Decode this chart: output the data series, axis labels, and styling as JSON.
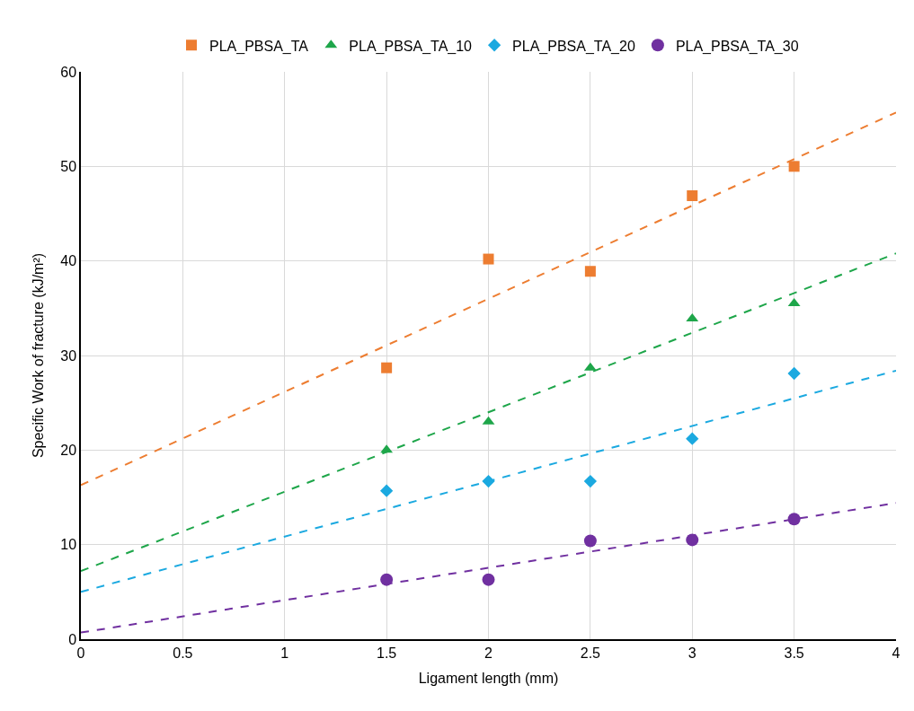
{
  "chart_data": {
    "type": "scatter",
    "xlabel": "Ligament length (mm)",
    "ylabel": "Specific Work of fracture (kJ/m²)",
    "xlim": [
      0,
      4
    ],
    "xticks": [
      0,
      0.5,
      1,
      1.5,
      2,
      2.5,
      3,
      3.5,
      4
    ],
    "ylim": [
      0,
      60
    ],
    "yticks": [
      0,
      10,
      20,
      30,
      40,
      50,
      60
    ],
    "grid": true,
    "legend": "top",
    "series": [
      {
        "name": "PLA_PBSA_TA",
        "color": "#ed7d31",
        "marker": "square",
        "x": [
          1.5,
          2,
          2.5,
          3,
          3.5
        ],
        "values": [
          28.7,
          40.2,
          38.9,
          46.9,
          50.0
        ]
      },
      {
        "name": "PLA_PBSA_TA_10",
        "color": "#1ea64a",
        "marker": "triangle",
        "x": [
          1.5,
          2,
          2.5,
          3,
          3.5
        ],
        "values": [
          20.0,
          23.0,
          28.7,
          33.9,
          35.5
        ]
      },
      {
        "name": "PLA_PBSA_TA_20",
        "color": "#1ba9e0",
        "marker": "diamond",
        "x": [
          1.5,
          2,
          2.5,
          3,
          3.5
        ],
        "values": [
          15.7,
          16.7,
          16.7,
          21.2,
          28.1
        ]
      },
      {
        "name": "PLA_PBSA_TA_30",
        "color": "#7030a0",
        "marker": "circle",
        "x": [
          1.5,
          2,
          2.5,
          3,
          3.5
        ],
        "values": [
          6.3,
          6.3,
          10.4,
          10.5,
          12.7
        ]
      },
      {
        "type": "line",
        "color": "#ed7d31",
        "line_style": "dashed",
        "x": [
          0,
          4
        ],
        "values": [
          16.3,
          55.7
        ]
      },
      {
        "type": "line",
        "color": "#1ea64a",
        "line_style": "dashed",
        "x": [
          0,
          4
        ],
        "values": [
          7.2,
          40.8
        ]
      },
      {
        "type": "line",
        "color": "#1ba9e0",
        "line_style": "dashed",
        "x": [
          0,
          4
        ],
        "values": [
          5.0,
          28.4
        ]
      },
      {
        "type": "line",
        "color": "#7030a0",
        "line_style": "dashed",
        "x": [
          0,
          4
        ],
        "values": [
          0.7,
          14.4
        ]
      }
    ]
  }
}
